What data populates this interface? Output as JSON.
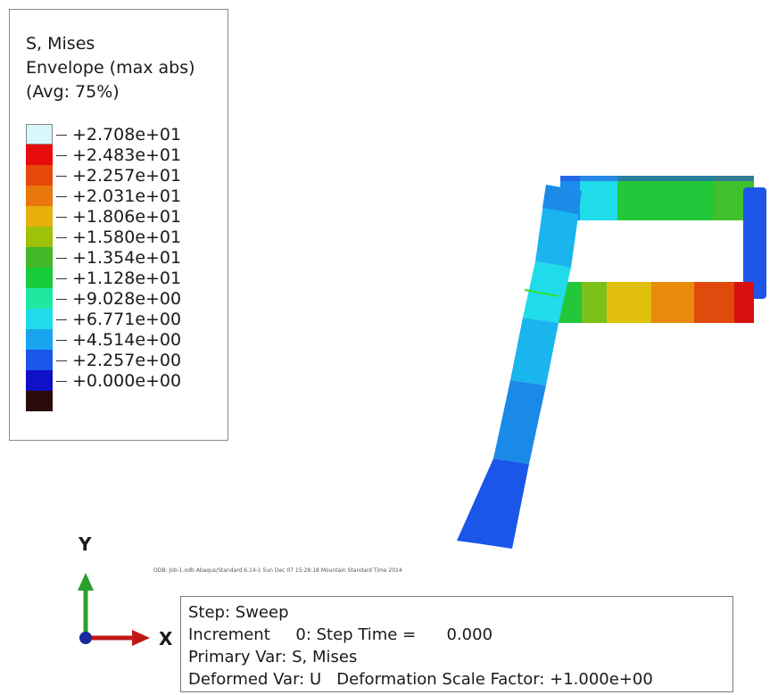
{
  "legend": {
    "title_lines": [
      "S, Mises",
      "Envelope (max abs)",
      "(Avg: 75%)"
    ],
    "levels": [
      {
        "label": "+2.708e+01",
        "color": "#d8f6fb"
      },
      {
        "label": "+2.483e+01",
        "color": "#e80c0c"
      },
      {
        "label": "+2.257e+01",
        "color": "#e8480c"
      },
      {
        "label": "+2.031e+01",
        "color": "#e8780c"
      },
      {
        "label": "+1.806e+01",
        "color": "#e8b00c"
      },
      {
        "label": "+1.580e+01",
        "color": "#9ec10a"
      },
      {
        "label": "+1.354e+01",
        "color": "#40b828"
      },
      {
        "label": "+1.128e+01",
        "color": "#18cc3a"
      },
      {
        "label": "+9.028e+00",
        "color": "#20e8a0"
      },
      {
        "label": "+6.771e+00",
        "color": "#20dcea"
      },
      {
        "label": "+4.514e+00",
        "color": "#1aa4f0"
      },
      {
        "label": "+2.257e+00",
        "color": "#1a56e8"
      },
      {
        "label": "+0.000e+00",
        "color": "#1010c8"
      }
    ],
    "bottom_color": "#2a0a0a"
  },
  "triad": {
    "x_label": "X",
    "y_label": "Y",
    "y_color": "#2aa02a",
    "x_color": "#c01818",
    "origin_color": "#1a2a9a"
  },
  "info": {
    "line1": "Step: Sweep",
    "line2": "Increment     0: Step Time =      0.000",
    "line3": "Primary Var: S, Mises",
    "line4": "Deformed Var: U   Deformation Scale Factor: +1.000e+00"
  },
  "odb_caption": "ODB: Job-1.odb    Abaqus/Standard 6.14-1    Sun Dec 07 15:28:18 Mountain Standard Time 2014"
}
